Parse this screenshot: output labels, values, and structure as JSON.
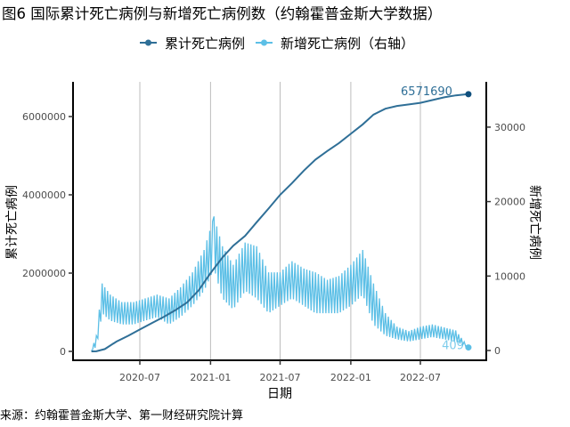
{
  "chart_data": {
    "type": "line",
    "title": "图6 国际累计死亡病例与新增死亡病例数（约翰霍普金斯大学数据）",
    "xlabel": "日期",
    "ylabel": "累计死亡病例",
    "ylabel_right": "新增死亡病例",
    "source": "来源：约翰霍普金斯大学、第一财经研究院计算",
    "legend_position": "top",
    "grid": "vertical major only",
    "x_ticks": [
      "2020-07",
      "2021-01",
      "2021-07",
      "2022-01",
      "2022-07"
    ],
    "y_ticks": [
      0,
      2000000,
      4000000,
      6000000
    ],
    "y_ticks_right": [
      0,
      10000,
      20000,
      30000
    ],
    "ylim": [
      -100000,
      6900000
    ],
    "ylim_right": [
      -500,
      36000
    ],
    "colors": {
      "cumulative": "#2f6f97",
      "daily": "#5cbfe6"
    },
    "series": [
      {
        "name": "累计死亡病例",
        "axis": "left",
        "end_label": "6571690",
        "dates": [
          "2020-02-26",
          "2020-03-10",
          "2020-04-01",
          "2020-05-01",
          "2020-06-01",
          "2020-07-01",
          "2020-08-01",
          "2020-09-01",
          "2020-10-01",
          "2020-11-01",
          "2020-12-01",
          "2021-01-01",
          "2021-02-01",
          "2021-03-01",
          "2021-04-01",
          "2021-05-01",
          "2021-06-01",
          "2021-07-01",
          "2021-08-01",
          "2021-09-01",
          "2021-10-01",
          "2021-11-01",
          "2021-12-01",
          "2022-01-01",
          "2022-02-01",
          "2022-03-01",
          "2022-04-01",
          "2022-05-01",
          "2022-06-01",
          "2022-07-01",
          "2022-08-01",
          "2022-09-01",
          "2022-10-01",
          "2022-11-03"
        ],
        "values": [
          0,
          3000,
          60000,
          250000,
          400000,
          560000,
          720000,
          880000,
          1050000,
          1250000,
          1560000,
          2000000,
          2400000,
          2700000,
          2950000,
          3300000,
          3650000,
          4000000,
          4300000,
          4620000,
          4900000,
          5120000,
          5320000,
          5560000,
          5800000,
          6050000,
          6200000,
          6270000,
          6310000,
          6350000,
          6420000,
          6490000,
          6540000,
          6571690
        ]
      },
      {
        "name": "新增死亡病例（右轴）",
        "axis": "right",
        "end_label": "409",
        "dates": [
          "2020-02-26",
          "2020-03-10",
          "2020-03-25",
          "2020-04-15",
          "2020-05-15",
          "2020-06-15",
          "2020-07-15",
          "2020-08-15",
          "2020-09-15",
          "2020-10-15",
          "2020-11-15",
          "2020-12-15",
          "2021-01-10",
          "2021-02-01",
          "2021-03-01",
          "2021-04-01",
          "2021-05-01",
          "2021-06-01",
          "2021-07-01",
          "2021-08-01",
          "2021-09-01",
          "2021-10-01",
          "2021-11-01",
          "2021-12-01",
          "2022-01-01",
          "2022-02-01",
          "2022-03-01",
          "2022-04-01",
          "2022-05-01",
          "2022-06-01",
          "2022-07-01",
          "2022-08-01",
          "2022-09-01",
          "2022-10-01",
          "2022-11-03"
        ],
        "high": [
          0,
          2000,
          9000,
          7500,
          6500,
          6500,
          7000,
          7500,
          7000,
          8500,
          10500,
          13500,
          18000,
          14000,
          11500,
          14500,
          14000,
          10500,
          10500,
          12000,
          11000,
          10500,
          9500,
          10000,
          11500,
          13500,
          9000,
          5000,
          3200,
          2600,
          3200,
          3500,
          3100,
          2700,
          409
        ],
        "low": [
          0,
          500,
          5000,
          4000,
          3500,
          3500,
          4000,
          4500,
          3500,
          4500,
          6000,
          8000,
          11000,
          7000,
          5500,
          8000,
          7000,
          5000,
          6000,
          7000,
          6000,
          5000,
          5000,
          5000,
          6000,
          7500,
          3500,
          2000,
          1500,
          1200,
          1500,
          1800,
          1500,
          1200,
          409
        ]
      }
    ]
  }
}
